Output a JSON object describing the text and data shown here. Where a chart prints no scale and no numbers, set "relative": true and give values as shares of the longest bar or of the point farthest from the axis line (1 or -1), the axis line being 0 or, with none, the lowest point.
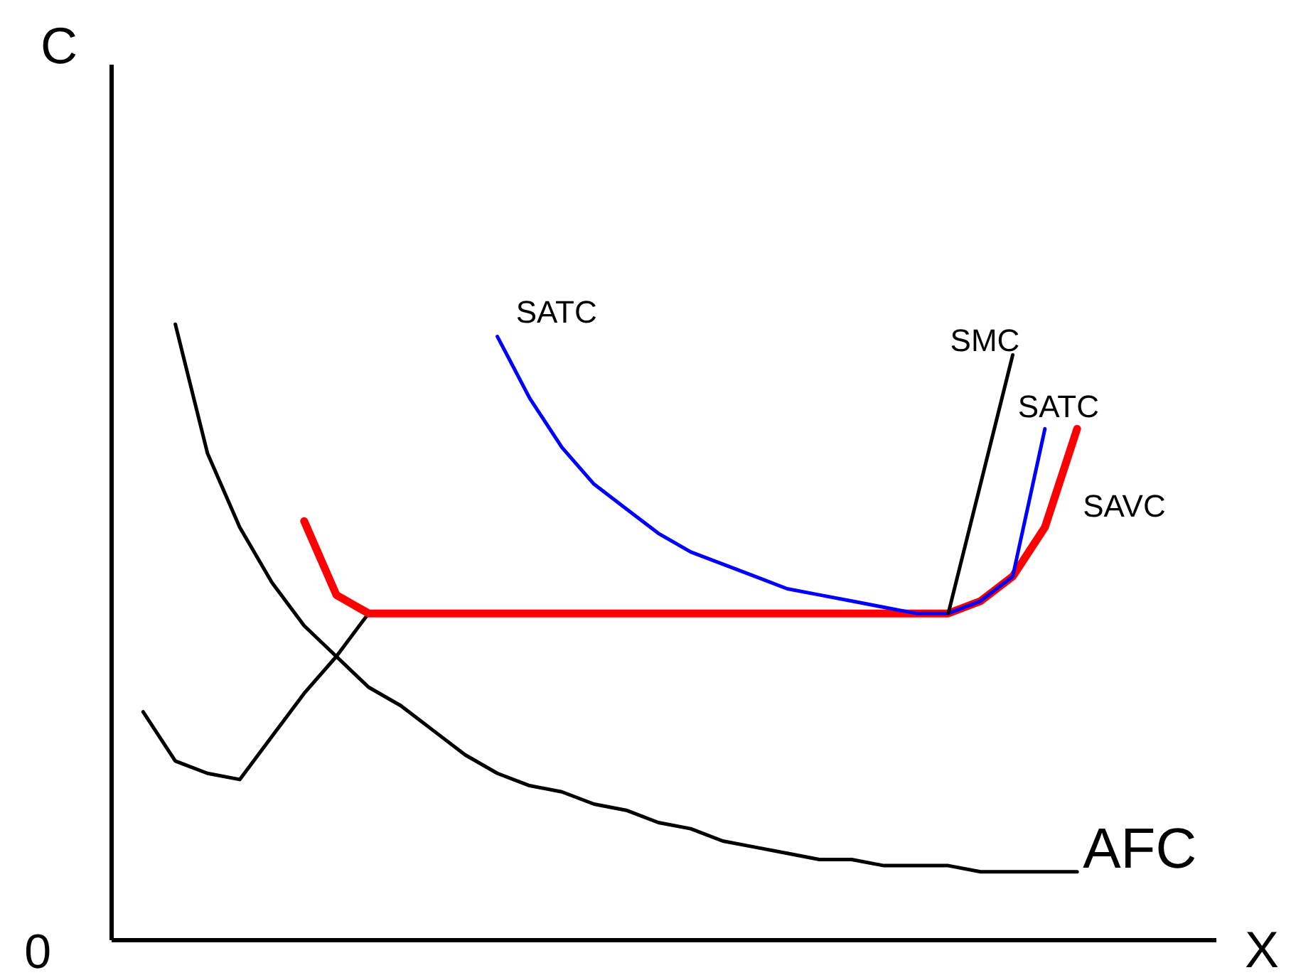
{
  "chart_data": {
    "type": "line",
    "relative": true,
    "tick_labels": false,
    "xlabel": "X",
    "ylabel": "C",
    "annotations": [
      "0"
    ],
    "categories": [
      null,
      null,
      null,
      null,
      null,
      null,
      null,
      null,
      null,
      null,
      null,
      null,
      null,
      null,
      null,
      null,
      null,
      null,
      null,
      null,
      null,
      null,
      null,
      null,
      null,
      null,
      null,
      null,
      null,
      null
    ],
    "series": [
      {
        "name": "AFC",
        "color": "#000000",
        "values": [
          null,
          1.0,
          0.79,
          0.67,
          0.58,
          0.51,
          0.46,
          0.41,
          0.38,
          0.34,
          0.3,
          0.27,
          0.25,
          0.24,
          0.22,
          0.21,
          0.19,
          0.18,
          0.16,
          0.15,
          0.14,
          0.13,
          0.13,
          0.12,
          0.12,
          0.12,
          0.11,
          0.11,
          0.11,
          0.11
        ]
      },
      {
        "color": "#000000",
        "values": [
          0.37,
          0.29,
          0.27,
          0.26,
          0.33,
          0.4,
          0.46,
          0.53,
          null,
          null,
          null,
          null,
          null,
          null,
          null,
          null,
          null,
          null,
          null,
          null,
          null,
          null,
          null,
          null,
          null,
          null,
          null,
          null,
          null,
          null
        ]
      },
      {
        "name": "SAVC",
        "color": "#ff0000",
        "values": [
          null,
          null,
          null,
          null,
          null,
          0.68,
          0.56,
          0.53,
          0.53,
          0.53,
          0.53,
          0.53,
          0.53,
          0.53,
          0.53,
          0.53,
          0.53,
          0.53,
          0.53,
          0.53,
          0.53,
          0.53,
          0.53,
          0.53,
          0.53,
          0.53,
          0.55,
          0.59,
          0.67,
          0.83
        ]
      },
      {
        "name": "SATC",
        "color": "#0000ff",
        "values": [
          null,
          null,
          null,
          null,
          null,
          null,
          null,
          null,
          null,
          null,
          null,
          0.98,
          0.88,
          0.8,
          0.74,
          0.7,
          0.66,
          0.63,
          0.61,
          0.59,
          0.57,
          0.56,
          0.55,
          0.54,
          0.53,
          0.53,
          0.55,
          0.59,
          0.83,
          null
        ]
      },
      {
        "name": "SMC",
        "color": "#000000",
        "values": [
          null,
          null,
          null,
          null,
          null,
          null,
          null,
          null,
          null,
          null,
          null,
          null,
          null,
          null,
          null,
          null,
          null,
          null,
          null,
          null,
          null,
          null,
          null,
          null,
          null,
          0.53,
          0.74,
          0.95,
          null,
          null
        ]
      }
    ]
  }
}
